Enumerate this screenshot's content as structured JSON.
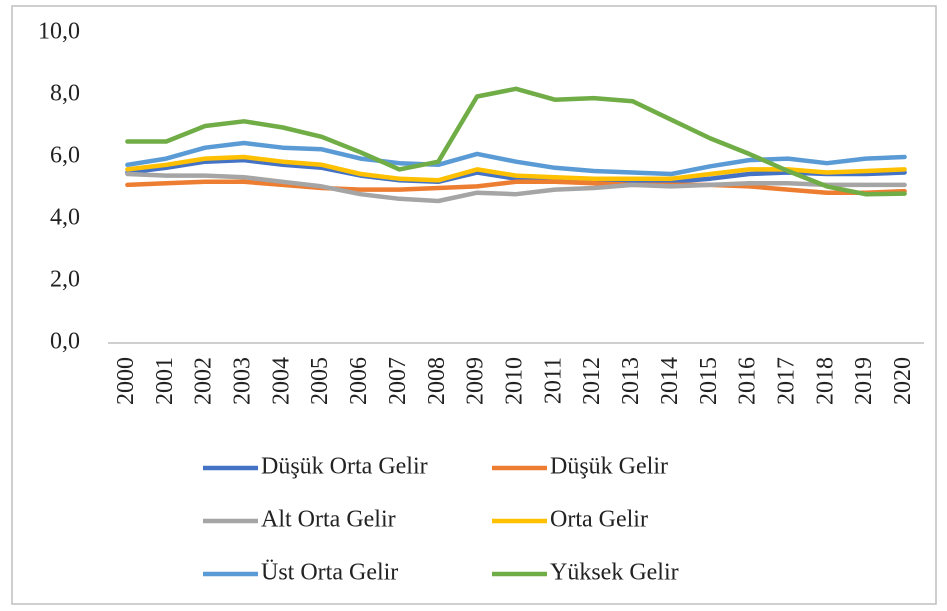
{
  "chart_data": {
    "type": "line",
    "categories": [
      "2000",
      "2001",
      "2002",
      "2003",
      "2004",
      "2005",
      "2006",
      "2007",
      "2008",
      "2009",
      "2010",
      "2011",
      "2012",
      "2013",
      "2014",
      "2015",
      "2016",
      "2017",
      "2018",
      "2019",
      "2020"
    ],
    "series": [
      {
        "name": "Düşük Orta Gelir",
        "color": "#4472c4",
        "values": [
          5.5,
          5.65,
          5.85,
          5.9,
          5.75,
          5.65,
          5.4,
          5.25,
          5.2,
          5.5,
          5.3,
          5.25,
          5.2,
          5.2,
          5.2,
          5.3,
          5.45,
          5.5,
          5.45,
          5.45,
          5.5
        ]
      },
      {
        "name": "Düşük Gelir",
        "color": "#ed7d31",
        "values": [
          5.1,
          5.15,
          5.2,
          5.2,
          5.1,
          5.0,
          4.95,
          4.95,
          5.0,
          5.05,
          5.2,
          5.2,
          5.15,
          5.1,
          5.1,
          5.1,
          5.05,
          4.95,
          4.85,
          4.85,
          4.9
        ]
      },
      {
        "name": "Alt Orta Gelir",
        "color": "#a5a5a5",
        "values": [
          5.45,
          5.4,
          5.4,
          5.35,
          5.2,
          5.05,
          4.8,
          4.65,
          4.58,
          4.85,
          4.8,
          4.95,
          5.0,
          5.1,
          5.05,
          5.1,
          5.15,
          5.15,
          5.1,
          5.1,
          5.1
        ]
      },
      {
        "name": "Orta Gelir",
        "color": "#ffc000",
        "values": [
          5.6,
          5.75,
          5.95,
          6.0,
          5.85,
          5.75,
          5.45,
          5.3,
          5.25,
          5.6,
          5.4,
          5.35,
          5.3,
          5.3,
          5.3,
          5.45,
          5.6,
          5.6,
          5.5,
          5.55,
          5.6
        ]
      },
      {
        "name": "Üst Orta Gelir",
        "color": "#5b9bd5",
        "values": [
          5.75,
          5.95,
          6.3,
          6.45,
          6.3,
          6.25,
          5.95,
          5.8,
          5.75,
          6.1,
          5.85,
          5.65,
          5.55,
          5.5,
          5.45,
          5.7,
          5.9,
          5.95,
          5.8,
          5.95,
          6.0
        ]
      },
      {
        "name": "Yüksek Gelir",
        "color": "#70ad47",
        "values": [
          6.5,
          6.5,
          7.0,
          7.15,
          6.95,
          6.65,
          6.15,
          5.6,
          5.85,
          7.95,
          8.2,
          7.85,
          7.9,
          7.8,
          7.2,
          6.6,
          6.1,
          5.55,
          5.05,
          4.8,
          4.82
        ]
      }
    ],
    "ylim": [
      0,
      10
    ],
    "yticks": [
      {
        "value": 0,
        "label": "0,0"
      },
      {
        "value": 2,
        "label": "2,0"
      },
      {
        "value": 4,
        "label": "4,0"
      },
      {
        "value": 6,
        "label": "6,0"
      },
      {
        "value": 8,
        "label": "8,0"
      },
      {
        "value": 10,
        "label": "10,0"
      }
    ],
    "grid": false,
    "legend": "bottom"
  }
}
